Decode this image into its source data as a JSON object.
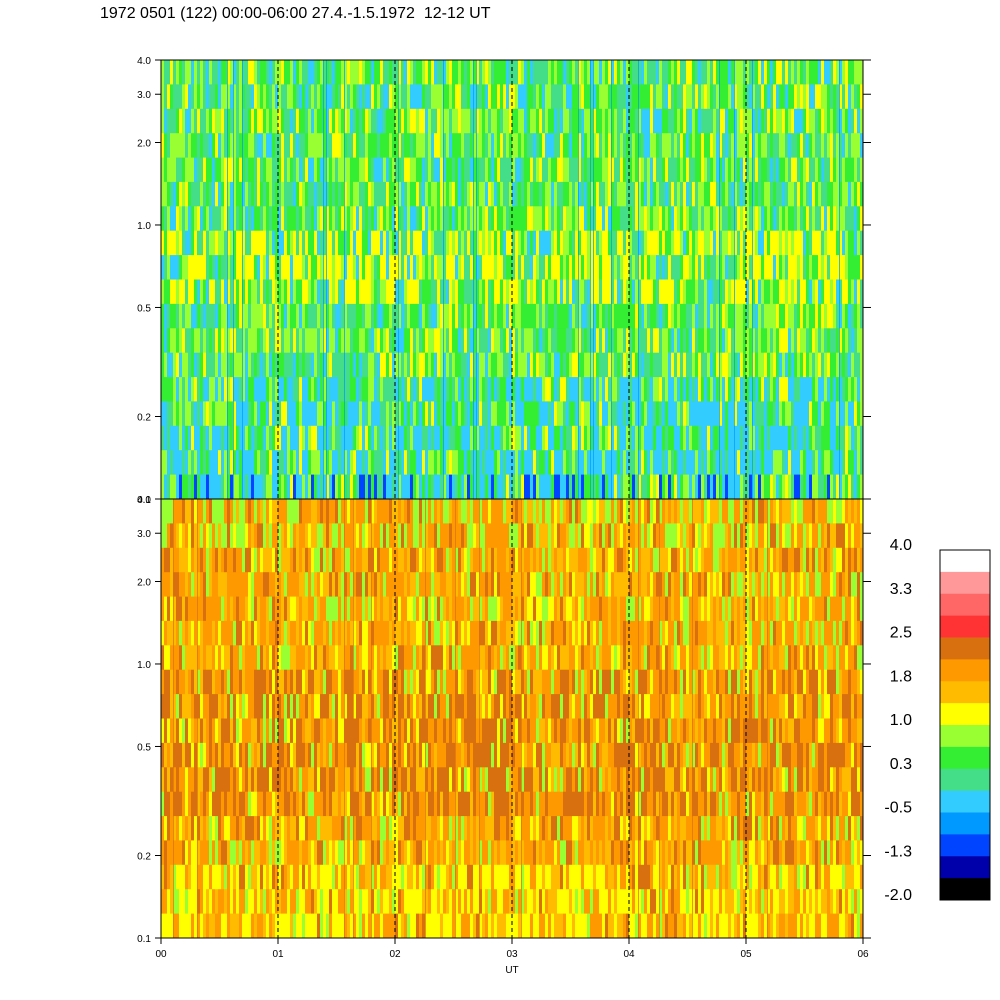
{
  "title": "1972 0501 (122) 00:00-06:00 27.4.-1.5.1972  12-12 UT",
  "chart_data": {
    "type": "heatmap",
    "xlabel": "UT",
    "x_ticks": [
      "00",
      "01",
      "02",
      "03",
      "04",
      "05",
      "06"
    ],
    "x_range_hours": [
      0,
      6
    ],
    "dashed_vertical_lines_at_hours": [
      1,
      2,
      3,
      4,
      5
    ],
    "panels": [
      {
        "name": "upper",
        "y_scale": "log",
        "y_range": [
          0.1,
          4.0
        ],
        "y_ticks": [
          "0.1",
          "0.2",
          "0.5",
          "1.0",
          "2.0",
          "3.0",
          "4.0"
        ],
        "dominant_colors": [
          "green",
          "teal",
          "yellow-green",
          "blue"
        ]
      },
      {
        "name": "lower",
        "y_scale": "log",
        "y_range": [
          0.1,
          4.0
        ],
        "y_ticks": [
          "0.1",
          "0.2",
          "0.5",
          "1.0",
          "2.0",
          "3.0",
          "4.0"
        ],
        "dominant_colors": [
          "orange",
          "yellow",
          "dark-orange"
        ]
      }
    ],
    "colorbar": {
      "labels": [
        "4.0",
        "3.3",
        "2.5",
        "1.8",
        "1.0",
        "0.3",
        "-0.5",
        "-1.3",
        "-2.0"
      ],
      "range": [
        -2.0,
        4.0
      ],
      "colors": [
        "#ffffff",
        "#ff9999",
        "#ff6666",
        "#ff3333",
        "#d97010",
        "#ff9900",
        "#ffbb00",
        "#ffff00",
        "#99ff33",
        "#33ee33",
        "#44dd88",
        "#33ccff",
        "#0099ff",
        "#0044ff",
        "#0000aa",
        "#000000"
      ]
    }
  }
}
